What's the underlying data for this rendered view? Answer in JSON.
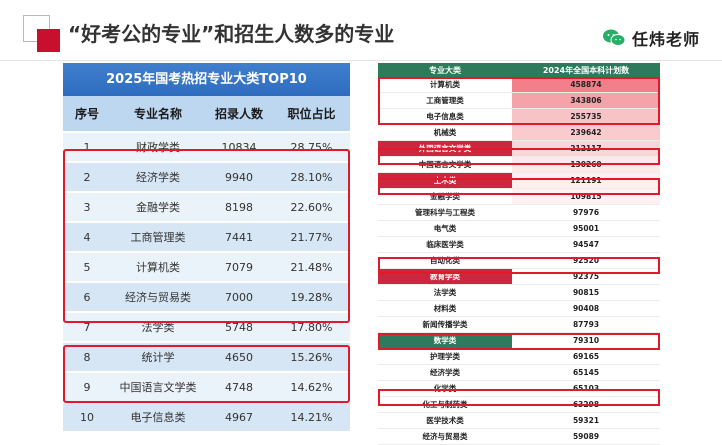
{
  "page": {
    "title": "“好考公的专业”和招生人数多的专业",
    "brand": "任炜老师"
  },
  "left_table": {
    "title": "2025年国考热招专业大类TOP10",
    "headers": [
      "序号",
      "专业名称",
      "招录人数",
      "职位占比"
    ],
    "rows": [
      {
        "no": "1",
        "name": "财政学类",
        "count": "10834",
        "ratio": "28.75%"
      },
      {
        "no": "2",
        "name": "经济学类",
        "count": "9940",
        "ratio": "28.10%"
      },
      {
        "no": "3",
        "name": "金融学类",
        "count": "8198",
        "ratio": "22.60%"
      },
      {
        "no": "4",
        "name": "工商管理类",
        "count": "7441",
        "ratio": "21.77%"
      },
      {
        "no": "5",
        "name": "计算机类",
        "count": "7079",
        "ratio": "21.48%"
      },
      {
        "no": "6",
        "name": "经济与贸易类",
        "count": "7000",
        "ratio": "19.28%"
      },
      {
        "no": "7",
        "name": "法学类",
        "count": "5748",
        "ratio": "17.80%"
      },
      {
        "no": "8",
        "name": "统计学",
        "count": "4650",
        "ratio": "15.26%"
      },
      {
        "no": "9",
        "name": "中国语言文学类",
        "count": "4748",
        "ratio": "14.62%"
      },
      {
        "no": "10",
        "name": "电子信息类",
        "count": "4967",
        "ratio": "14.21%"
      }
    ]
  },
  "right_table": {
    "headers": [
      "专业大类",
      "2024年全国本科计划数"
    ],
    "rows": [
      {
        "name": "计算机类",
        "value": "458874",
        "name_bg": "#ffffff",
        "val_bg": "#f27f89"
      },
      {
        "name": "工商管理类",
        "value": "343806",
        "name_bg": "#ffffff",
        "val_bg": "#f5a2a9"
      },
      {
        "name": "电子信息类",
        "value": "255735",
        "name_bg": "#ffffff",
        "val_bg": "#f8c3c7"
      },
      {
        "name": "机械类",
        "value": "239642",
        "name_bg": "#ffffff",
        "val_bg": "#f9cbcf"
      },
      {
        "name": "外国语言文学类",
        "value": "212117",
        "name_bg": "#c9283e",
        "val_bg": "#fad6d9"
      },
      {
        "name": "中国语言文学类",
        "value": "130260",
        "name_bg": "#ffffff",
        "val_bg": "#fce9eb"
      },
      {
        "name": "土木类",
        "value": "121191",
        "name_bg": "#c9283e",
        "val_bg": "#fdeef0"
      },
      {
        "name": "金融学类",
        "value": "109815",
        "name_bg": "#ffffff",
        "val_bg": "#fdf1f2"
      },
      {
        "name": "管理科学与工程类",
        "value": "97976",
        "name_bg": "#ffffff",
        "val_bg": "#ffffff"
      },
      {
        "name": "电气类",
        "value": "95001",
        "name_bg": "#ffffff",
        "val_bg": "#ffffff"
      },
      {
        "name": "临床医学类",
        "value": "94547",
        "name_bg": "#ffffff",
        "val_bg": "#ffffff"
      },
      {
        "name": "自动化类",
        "value": "92520",
        "name_bg": "#ffffff",
        "val_bg": "#ffffff"
      },
      {
        "name": "教育学类",
        "value": "92375",
        "name_bg": "#c9283e",
        "val_bg": "#ffffff"
      },
      {
        "name": "法学类",
        "value": "90815",
        "name_bg": "#ffffff",
        "val_bg": "#ffffff"
      },
      {
        "name": "材料类",
        "value": "90408",
        "name_bg": "#ffffff",
        "val_bg": "#ffffff"
      },
      {
        "name": "新闻传播学类",
        "value": "87793",
        "name_bg": "#ffffff",
        "val_bg": "#ffffff"
      },
      {
        "name": "数学类",
        "value": "79310",
        "name_bg": "#2d7a5c",
        "val_bg": "#ffffff"
      },
      {
        "name": "护理学类",
        "value": "69165",
        "name_bg": "#ffffff",
        "val_bg": "#ffffff"
      },
      {
        "name": "经济学类",
        "value": "65145",
        "name_bg": "#ffffff",
        "val_bg": "#ffffff"
      },
      {
        "name": "化学类",
        "value": "65103",
        "name_bg": "#ffffff",
        "val_bg": "#ffffff"
      },
      {
        "name": "化工与制药类",
        "value": "63298",
        "name_bg": "#ffffff",
        "val_bg": "#ffffff"
      },
      {
        "name": "医学技术类",
        "value": "59321",
        "name_bg": "#ffffff",
        "val_bg": "#ffffff"
      },
      {
        "name": "经济与贸易类",
        "value": "59089",
        "name_bg": "#ffffff",
        "val_bg": "#ffffff"
      }
    ]
  },
  "icons": {
    "brand": "wechat-icon"
  },
  "colors": {
    "accent_red": "#c8102e",
    "highlight_box": "#e01a2b",
    "header_blue": "#2f6cbf",
    "header_green": "#2d7a5c"
  }
}
